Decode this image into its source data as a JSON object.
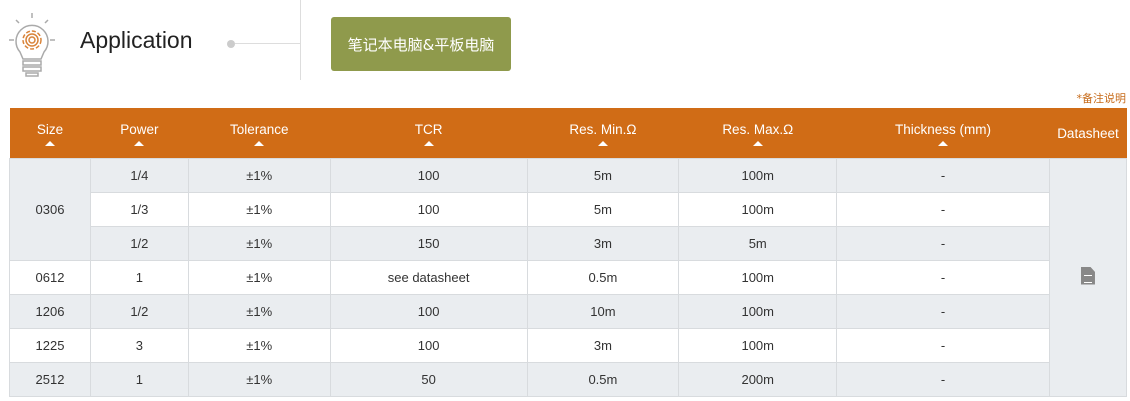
{
  "header": {
    "title": "Application",
    "application_button": "笔记本电脑&平板电脑",
    "note": "*备注说明"
  },
  "colors": {
    "accent": "#d06c16",
    "button": "#8f9a4c"
  },
  "table": {
    "columns": [
      "Size",
      "Power",
      "Tolerance",
      "TCR",
      "Res. Min.Ω",
      "Res. Max.Ω",
      "Thickness (mm)",
      "Datasheet"
    ],
    "rows": [
      {
        "size": "0306",
        "power": "1/4",
        "tolerance": "±1%",
        "tcr": "100",
        "min": "5m",
        "max": "100m",
        "thickness": "-"
      },
      {
        "size": "0306",
        "power": "1/3",
        "tolerance": "±1%",
        "tcr": "100",
        "min": "5m",
        "max": "100m",
        "thickness": "-"
      },
      {
        "size": "0306",
        "power": "1/2",
        "tolerance": "±1%",
        "tcr": "150",
        "min": "3m",
        "max": "5m",
        "thickness": "-"
      },
      {
        "size": "0612",
        "power": "1",
        "tolerance": "±1%",
        "tcr": "see datasheet",
        "min": "0.5m",
        "max": "100m",
        "thickness": "-"
      },
      {
        "size": "1206",
        "power": "1/2",
        "tolerance": "±1%",
        "tcr": "100",
        "min": "10m",
        "max": "100m",
        "thickness": "-"
      },
      {
        "size": "1225",
        "power": "3",
        "tolerance": "±1%",
        "tcr": "100",
        "min": "3m",
        "max": "100m",
        "thickness": "-"
      },
      {
        "size": "2512",
        "power": "1",
        "tolerance": "±1%",
        "tcr": "50",
        "min": "0.5m",
        "max": "200m",
        "thickness": "-"
      }
    ],
    "datasheet_icon": "document-icon"
  }
}
